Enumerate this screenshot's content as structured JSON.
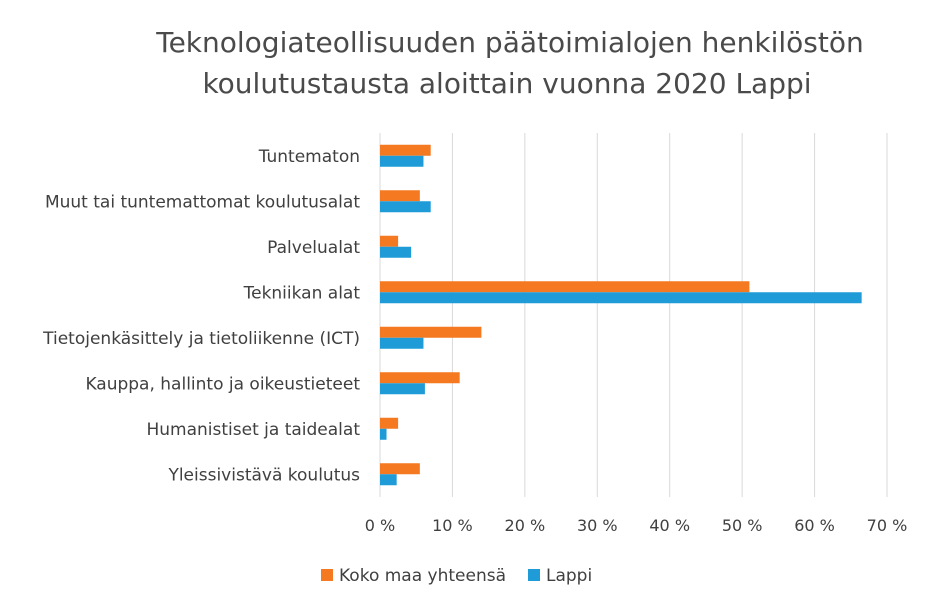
{
  "chart_data": {
    "type": "bar",
    "orientation": "horizontal",
    "title_lines": [
      "Teknologiateollisuuden päätoimialojen henkilöstön",
      "koulutustausta aloittain vuonna 2020 Lappi"
    ],
    "categories": [
      "Tuntematon",
      "Muut tai tuntemattomat koulutusalat",
      "Palvelualat",
      "Tekniikan alat",
      "Tietojenkäsittely ja tietoliikenne (ICT)",
      "Kauppa, hallinto ja oikeustieteet",
      "Humanistiset ja taidealat",
      "Yleissivistävä koulutus"
    ],
    "series": [
      {
        "name": "Koko maa yhteensä",
        "color": "#F47920",
        "values": [
          7.0,
          5.5,
          2.5,
          51.0,
          14.0,
          11.0,
          2.5,
          5.5
        ]
      },
      {
        "name": "Lappi",
        "color": "#1F9BD7",
        "values": [
          6.0,
          7.0,
          4.3,
          66.5,
          6.0,
          6.2,
          0.9,
          2.3
        ]
      }
    ],
    "xlim": [
      0,
      70
    ],
    "xticks": [
      0,
      10,
      20,
      30,
      40,
      50,
      60,
      70
    ],
    "xtick_labels": [
      "0 %",
      "10 %",
      "20 %",
      "30 %",
      "40 %",
      "50 %",
      "60 %",
      "70 %"
    ],
    "grid": true,
    "legend_position": "bottom"
  }
}
